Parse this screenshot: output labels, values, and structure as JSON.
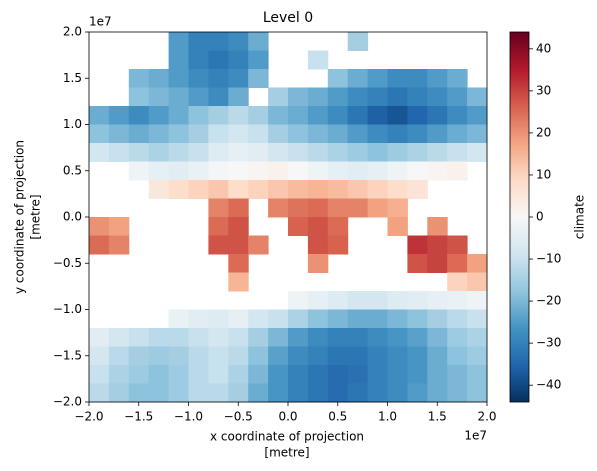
{
  "chart_data": {
    "type": "heatmap",
    "title": "Level 0",
    "xlabel": [
      "x coordinate of projection",
      "[metre]"
    ],
    "ylabel": [
      "y coordinate of projection",
      "[metre]"
    ],
    "x_offset_label": "1e7",
    "y_offset_label": "1e7",
    "xlim": [
      -2,
      2
    ],
    "ylim": [
      -2,
      2
    ],
    "xticks": [
      {
        "value": -2,
        "label": "−2.0"
      },
      {
        "value": -1.5,
        "label": "−1.5"
      },
      {
        "value": -1,
        "label": "−1.0"
      },
      {
        "value": -0.5,
        "label": "−0.5"
      },
      {
        "value": 0,
        "label": "0.0"
      },
      0.5,
      {
        "value": 1,
        "label": "1.0"
      },
      1.5,
      {
        "value": 2,
        "label": "2.0"
      }
    ],
    "yticks": [
      {
        "value": -2,
        "label": "−2.0"
      },
      {
        "value": -1.5,
        "label": "−1.5"
      },
      {
        "value": -1,
        "label": "−1.0"
      },
      {
        "value": -0.5,
        "label": "−0.5"
      },
      {
        "value": 0,
        "label": "0.0"
      },
      0.5,
      {
        "value": 1,
        "label": "1.0"
      },
      1.5,
      {
        "value": 2,
        "label": "2.0"
      }
    ],
    "colormap": "RdBu_r",
    "colorbar_label": "climate",
    "clim": [
      -44,
      44
    ],
    "colorbar_ticks": [
      {
        "value": -40,
        "label": "−40"
      },
      {
        "value": -30,
        "label": "−30"
      },
      {
        "value": -20,
        "label": "−20"
      },
      {
        "value": -10,
        "label": "−10"
      },
      0,
      10,
      20,
      30,
      40
    ],
    "z": [
      [
        null,
        null,
        null,
        null,
        -25,
        -30,
        -30,
        -28,
        -22,
        null,
        null,
        null,
        null,
        -15,
        null,
        null,
        null,
        null,
        null,
        null
      ],
      [
        null,
        null,
        null,
        null,
        -25,
        -30,
        -32,
        -30,
        -25,
        null,
        null,
        -10,
        null,
        null,
        null,
        null,
        null,
        null,
        null,
        null
      ],
      [
        null,
        null,
        -20,
        -22,
        -25,
        -28,
        -30,
        -28,
        -20,
        null,
        null,
        null,
        -18,
        -22,
        -25,
        -28,
        -28,
        -25,
        -22,
        null
      ],
      [
        null,
        null,
        -18,
        -20,
        -22,
        -25,
        -28,
        -22,
        null,
        -15,
        -20,
        -22,
        -25,
        -28,
        -30,
        -32,
        -30,
        -28,
        -25,
        -20
      ],
      [
        -22,
        -25,
        -28,
        -25,
        -22,
        -18,
        -15,
        -12,
        -15,
        -20,
        -22,
        -25,
        -28,
        -32,
        -36,
        -38,
        -35,
        -32,
        -28,
        -25
      ],
      [
        -18,
        -20,
        -22,
        -20,
        -18,
        -15,
        -10,
        -8,
        -10,
        -15,
        -18,
        -20,
        -22,
        -25,
        -28,
        -30,
        -28,
        -25,
        -22,
        -20
      ],
      [
        -8,
        -10,
        -12,
        -14,
        -12,
        -10,
        -6,
        -4,
        -5,
        -8,
        -10,
        -12,
        -14,
        -16,
        -18,
        -16,
        -14,
        -12,
        -10,
        -8
      ],
      [
        null,
        null,
        -2,
        -4,
        -5,
        -3,
        -1,
        0,
        1,
        2,
        0,
        -2,
        -4,
        -5,
        -4,
        -2,
        0,
        1,
        2,
        null
      ],
      [
        null,
        null,
        null,
        5,
        8,
        10,
        12,
        8,
        10,
        12,
        14,
        15,
        14,
        12,
        10,
        8,
        6,
        null,
        null,
        null
      ],
      [
        null,
        null,
        null,
        null,
        null,
        null,
        22,
        25,
        null,
        22,
        24,
        25,
        22,
        22,
        18,
        16,
        null,
        null,
        null,
        null
      ],
      [
        20,
        18,
        null,
        null,
        null,
        null,
        25,
        28,
        null,
        null,
        26,
        28,
        25,
        null,
        null,
        18,
        null,
        20,
        null,
        null
      ],
      [
        25,
        22,
        null,
        null,
        null,
        null,
        28,
        28,
        22,
        null,
        null,
        28,
        26,
        null,
        null,
        null,
        32,
        30,
        28,
        null
      ],
      [
        null,
        null,
        null,
        null,
        null,
        null,
        null,
        25,
        null,
        null,
        null,
        20,
        null,
        null,
        null,
        null,
        28,
        30,
        25,
        18
      ],
      [
        null,
        null,
        null,
        null,
        null,
        null,
        null,
        15,
        null,
        null,
        null,
        null,
        null,
        null,
        null,
        null,
        null,
        null,
        10,
        12
      ],
      [
        null,
        null,
        null,
        null,
        null,
        null,
        null,
        null,
        null,
        null,
        -2,
        -4,
        -6,
        -8,
        -8,
        -6,
        -5,
        -4,
        -3,
        -2
      ],
      [
        null,
        null,
        null,
        null,
        -3,
        -5,
        -6,
        -4,
        -8,
        -10,
        -14,
        -18,
        -20,
        -22,
        -22,
        -20,
        -18,
        -15,
        -12,
        -10
      ],
      [
        -5,
        -8,
        -10,
        -12,
        -12,
        -10,
        -8,
        -10,
        -15,
        -20,
        -25,
        -28,
        -30,
        -30,
        -28,
        -26,
        -24,
        -20,
        -16,
        -14
      ],
      [
        -8,
        -12,
        -15,
        -16,
        -15,
        -12,
        -10,
        -12,
        -18,
        -24,
        -28,
        -30,
        -32,
        -32,
        -30,
        -28,
        -26,
        -22,
        -18,
        -16
      ],
      [
        -10,
        -14,
        -16,
        -18,
        -16,
        -12,
        -10,
        -14,
        -20,
        -26,
        -30,
        -32,
        -34,
        -33,
        -30,
        -28,
        -26,
        -22,
        -20,
        -18
      ],
      [
        -12,
        -15,
        -18,
        -18,
        -16,
        -12,
        -12,
        -15,
        -22,
        -26,
        -30,
        -32,
        -34,
        -32,
        -30,
        -28,
        -25,
        -22,
        -20,
        -18
      ]
    ]
  }
}
